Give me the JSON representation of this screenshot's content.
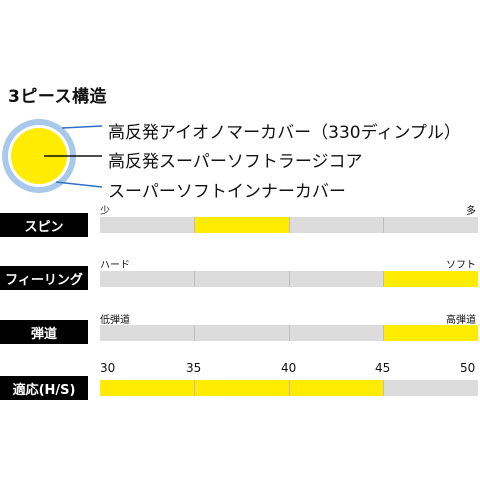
{
  "title": "3ピース構造",
  "ball": {
    "colors": {
      "cover": "#a8c8ec",
      "mantle": "#ffffff",
      "core": "#ffec00",
      "outline": "#2f6fc8"
    },
    "layers": [
      "高反発アイオノマーカバー（330ディンプル）",
      "高反発スーパーソフトラージコア",
      "スーパーソフトインナーカバー"
    ]
  },
  "ratings": {
    "spin": {
      "label": "スピン",
      "min_label": "少",
      "max_label": "多",
      "fill_from": 0.25,
      "fill_to": 0.5
    },
    "feeling": {
      "label": "フィーリング",
      "min_label": "ハード",
      "max_label": "ソフト",
      "fill_from": 0.75,
      "fill_to": 1.0
    },
    "trajectory": {
      "label": "弾道",
      "min_label": "低弾道",
      "max_label": "高弾道",
      "fill_from": 0.75,
      "fill_to": 1.0
    },
    "head_speed": {
      "label": "適応(H/S)",
      "scale": [
        "30",
        "35",
        "40",
        "45",
        "50"
      ],
      "fill_from": 30,
      "fill_to": 45
    }
  },
  "colors": {
    "bar_bg": "#dcdcdc",
    "bar_fill": "#ffec00",
    "label_bg": "#000000"
  }
}
